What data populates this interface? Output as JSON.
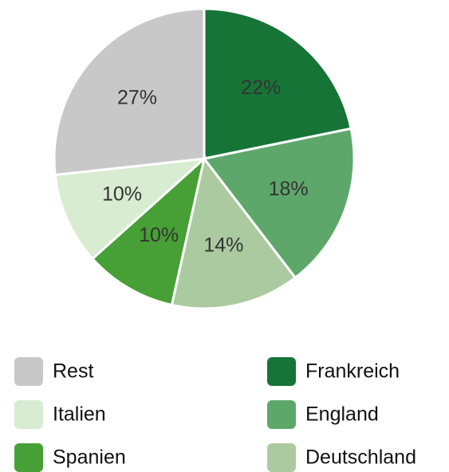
{
  "chart_data": {
    "type": "pie",
    "categories": [
      "Frankreich",
      "England",
      "Deutschland",
      "Spanien",
      "Italien",
      "Rest"
    ],
    "values": [
      22,
      18,
      14,
      10,
      10,
      27
    ],
    "value_labels": [
      "22%",
      "18%",
      "14%",
      "10%",
      "10%",
      "27%"
    ],
    "colors": [
      "#177437",
      "#5ea76b",
      "#abcaa0",
      "#47a035",
      "#d7ecd0",
      "#c8c8c8"
    ]
  }
}
